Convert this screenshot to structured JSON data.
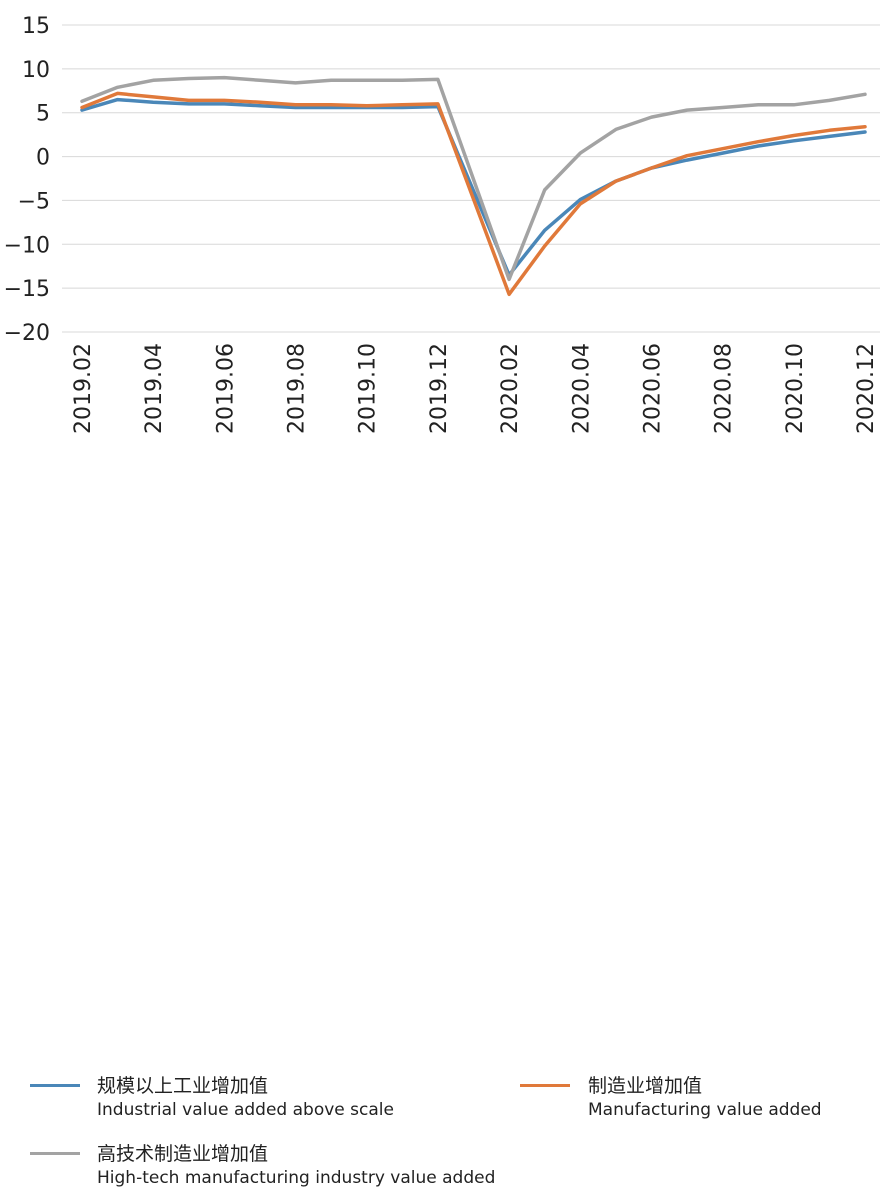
{
  "chart_data": {
    "type": "line",
    "title": "",
    "xlabel": "",
    "ylabel": "",
    "ylim": [
      -20,
      15
    ],
    "yticks": [
      15,
      10,
      5,
      0,
      -5,
      -10,
      -15,
      -20
    ],
    "ytick_labels": [
      "15",
      "10",
      "5",
      "0",
      "−5",
      "−10",
      "−15",
      "−20"
    ],
    "x": [
      "2019.02",
      "2019.03",
      "2019.04",
      "2019.05",
      "2019.06",
      "2019.07",
      "2019.08",
      "2019.09",
      "2019.10",
      "2019.11",
      "2019.12",
      "2020.01",
      "2020.02",
      "2020.03",
      "2020.04",
      "2020.05",
      "2020.06",
      "2020.07",
      "2020.08",
      "2020.09",
      "2020.10",
      "2020.11",
      "2020.12"
    ],
    "x_tick_labels": [
      "2019.02",
      "2019.04",
      "2019.06",
      "2019.08",
      "2019.10",
      "2019.12",
      "2020.02",
      "2020.04",
      "2020.06",
      "2020.08",
      "2020.10",
      "2020.12"
    ],
    "grid": "horizontal",
    "legend_placement": "bottom",
    "series": [
      {
        "name_cn": "规模以上工业增加值",
        "name": "Industrial value added above scale",
        "color": "#4a87b8",
        "values": [
          5.3,
          6.5,
          6.2,
          6.0,
          6.0,
          5.8,
          5.6,
          5.6,
          5.6,
          5.6,
          5.7,
          null,
          -13.5,
          -8.4,
          -4.9,
          -2.8,
          -1.3,
          -0.4,
          0.4,
          1.2,
          1.8,
          2.3,
          2.8
        ]
      },
      {
        "name_cn": "制造业增加值",
        "name": "Manufacturing value added",
        "color": "#e0793a",
        "values": [
          5.6,
          7.2,
          6.8,
          6.4,
          6.4,
          6.2,
          5.9,
          5.9,
          5.8,
          5.9,
          6.0,
          null,
          -15.7,
          -10.2,
          -5.4,
          -2.8,
          -1.3,
          0.1,
          0.9,
          1.7,
          2.4,
          3.0,
          3.4
        ]
      },
      {
        "name_cn": "高技术制造业增加值",
        "name": "High-tech manufacturing industry value added",
        "color": "#a3a3a3",
        "values": [
          6.3,
          7.9,
          8.7,
          8.9,
          9.0,
          8.7,
          8.4,
          8.7,
          8.7,
          8.7,
          8.8,
          null,
          -14.0,
          -3.8,
          0.4,
          3.1,
          4.5,
          5.3,
          5.6,
          5.9,
          5.9,
          6.4,
          7.1
        ]
      }
    ]
  }
}
